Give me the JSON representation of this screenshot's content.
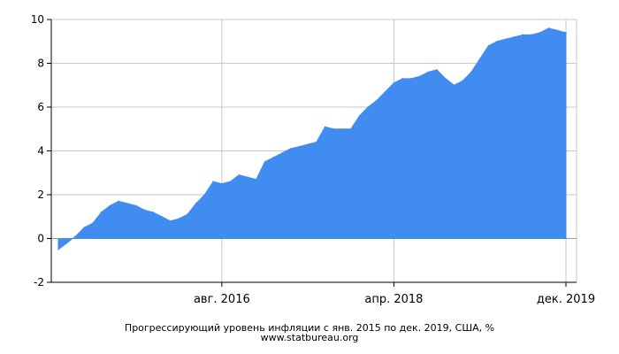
{
  "chart_data": {
    "type": "area",
    "title": "Прогрессирующий уровень инфляции с янв. 2015 по дек. 2019, США, %",
    "source": "www.statbureau.org",
    "xlabel": "",
    "ylabel": "",
    "ylim": [
      -2,
      10
    ],
    "y_ticks": [
      -2,
      0,
      2,
      4,
      6,
      8,
      10
    ],
    "x_ticks": [
      {
        "month_index": 19,
        "label": "авг. 2016"
      },
      {
        "month_index": 39,
        "label": "апр. 2018"
      },
      {
        "month_index": 59,
        "label": "дек. 2019"
      }
    ],
    "grid": true,
    "color": "#418cf0",
    "x_start": "2015-01",
    "series": [
      {
        "name": "",
        "values": [
          -0.5,
          -0.2,
          0.1,
          0.5,
          0.7,
          1.2,
          1.5,
          1.7,
          1.6,
          1.5,
          1.3,
          1.2,
          1.0,
          0.8,
          0.9,
          1.1,
          1.6,
          2.0,
          2.6,
          2.5,
          2.6,
          2.9,
          2.8,
          2.7,
          3.5,
          3.7,
          3.9,
          4.1,
          4.2,
          4.3,
          4.4,
          5.1,
          5.0,
          5.0,
          5.0,
          5.6,
          6.0,
          6.3,
          6.7,
          7.1,
          7.3,
          7.3,
          7.4,
          7.6,
          7.7,
          7.3,
          7.0,
          7.2,
          7.6,
          8.2,
          8.8,
          9.0,
          9.1,
          9.2,
          9.3,
          9.3,
          9.4,
          9.6,
          9.5,
          9.4
        ]
      }
    ]
  }
}
